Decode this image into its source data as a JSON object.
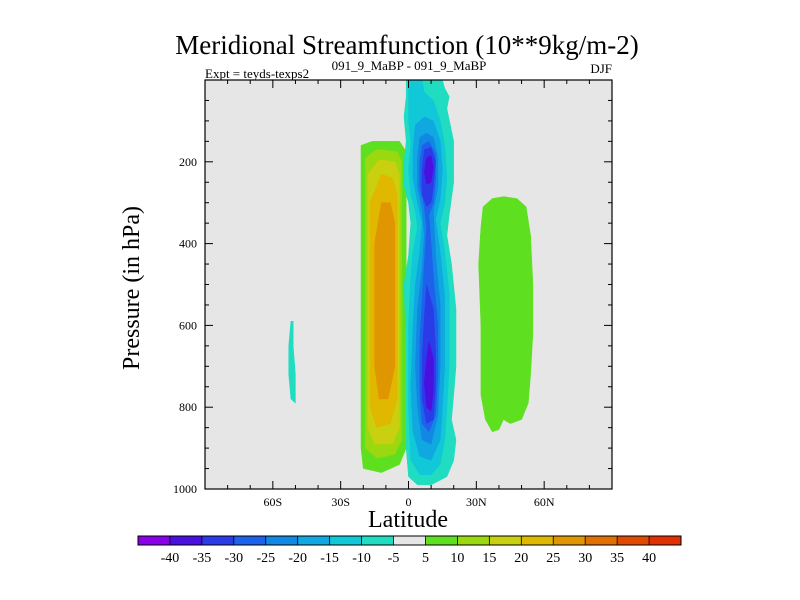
{
  "chart_data": {
    "type": "heatmap",
    "title": "Meridional Streamfunction (10**9kg/m-2)",
    "subtitle_left": "Expt = teyds-texps2",
    "subtitle_center": "091_9_MaBP - 091_9_MaBP",
    "subtitle_right": "DJF",
    "xlabel": "Latitude",
    "ylabel": "Pressure (in hPa)",
    "xlim": [
      -90,
      90
    ],
    "ylim": [
      1000,
      0
    ],
    "x_ticks": [
      {
        "value": -60,
        "label": "60S"
      },
      {
        "value": -30,
        "label": "30S"
      },
      {
        "value": 0,
        "label": "0"
      },
      {
        "value": 30,
        "label": "30N"
      },
      {
        "value": 60,
        "label": "60N"
      }
    ],
    "y_ticks": [
      {
        "value": 200,
        "label": "200"
      },
      {
        "value": 400,
        "label": "400"
      },
      {
        "value": 600,
        "label": "600"
      },
      {
        "value": 800,
        "label": "800"
      },
      {
        "value": 1000,
        "label": "1000"
      }
    ],
    "colorbar": {
      "labels": [
        "-40",
        "-35",
        "-30",
        "-25",
        "-20",
        "-15",
        "-10",
        "-5",
        "5",
        "10",
        "15",
        "20",
        "25",
        "30",
        "35",
        "40"
      ],
      "colors": [
        "#8a00e8",
        "#4a10e0",
        "#2a3ce8",
        "#1e62ec",
        "#1088e4",
        "#10a8e0",
        "#10c8d8",
        "#20dcc0",
        "#e6e6e6",
        "#5ee020",
        "#9ad810",
        "#c8d010",
        "#e0b800",
        "#e09600",
        "#e07000",
        "#e04a00",
        "#e03000"
      ]
    },
    "background_color": "#e6e6e6",
    "features": [
      {
        "name": "southern-positive-cell",
        "sign": "positive",
        "lat_range": [
          -21,
          -1
        ],
        "p_range": [
          150,
          960
        ],
        "peak": 25,
        "peak_lat": -10,
        "peak_p": 550
      },
      {
        "name": "tropical-negative-cell",
        "sign": "negative",
        "lat_range": [
          -2,
          22
        ],
        "p_range": [
          0,
          990
        ],
        "peak": -35,
        "peak_lat": 10,
        "peak_p": 780
      },
      {
        "name": "upper-negative-core",
        "sign": "negative",
        "lat_range": [
          5,
          15
        ],
        "p_range": [
          150,
          330
        ],
        "peak": -35,
        "peak_lat": 10,
        "peak_p": 220
      },
      {
        "name": "northern-positive-cell",
        "sign": "positive",
        "lat_range": [
          32,
          55
        ],
        "p_range": [
          290,
          860
        ],
        "peak": 5,
        "peak_lat": 42,
        "peak_p": 560
      },
      {
        "name": "southern-small-negative",
        "sign": "negative",
        "lat_range": [
          -53,
          -50
        ],
        "p_range": [
          590,
          790
        ],
        "peak": -5,
        "peak_lat": -51,
        "peak_p": 700
      }
    ]
  }
}
